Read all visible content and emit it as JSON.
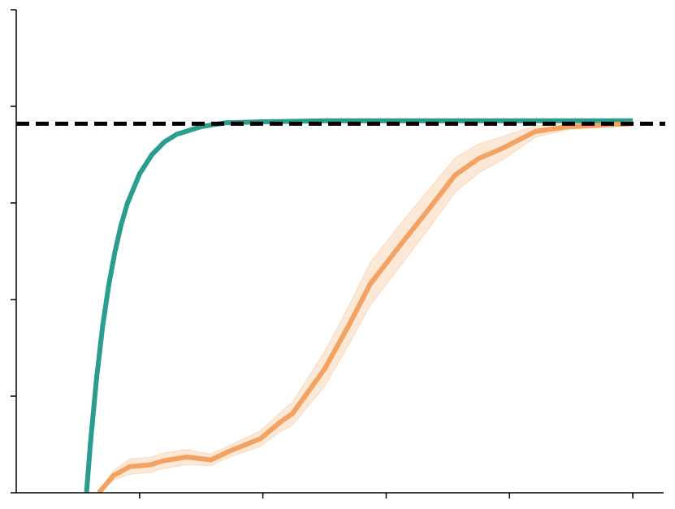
{
  "chart_data": {
    "type": "line",
    "xlim": [
      0,
      5.25
    ],
    "xticks": [
      1,
      2,
      3,
      4,
      5
    ],
    "ylim": [
      0,
      5
    ],
    "yticks": [
      0,
      1,
      2,
      3,
      4,
      5
    ],
    "hline": {
      "value": 3.82,
      "color": "#000000",
      "dashed": true
    },
    "series": [
      {
        "color": "#2a9d8f",
        "x": [
          0.57,
          0.6,
          0.65,
          0.7,
          0.75,
          0.8,
          0.85,
          0.9,
          1.0,
          1.1,
          1.2,
          1.3,
          1.5,
          1.7,
          2.0,
          2.5,
          3,
          4,
          5
        ],
        "values": [
          0,
          0.49,
          1.17,
          1.72,
          2.15,
          2.49,
          2.77,
          2.99,
          3.3,
          3.5,
          3.63,
          3.71,
          3.79,
          3.83,
          3.84,
          3.85,
          3.85,
          3.85,
          3.85
        ]
      },
      {
        "color": "#f4a261",
        "x": [
          0.67,
          0.79,
          0.92,
          1.09,
          1.19,
          1.38,
          1.58,
          1.71,
          1.98,
          2.14,
          2.24,
          2.5,
          2.7,
          2.87,
          3.1,
          3.36,
          3.56,
          3.75,
          3.95,
          4.21,
          4.48,
          5.0
        ],
        "values": [
          0,
          0.18,
          0.27,
          0.29,
          0.33,
          0.37,
          0.34,
          0.42,
          0.56,
          0.73,
          0.82,
          1.28,
          1.74,
          2.16,
          2.54,
          2.96,
          3.29,
          3.46,
          3.57,
          3.74,
          3.79,
          3.82
        ],
        "error": [
          0,
          0.05,
          0.08,
          0.08,
          0.08,
          0.08,
          0.06,
          0.06,
          0.08,
          0.1,
          0.12,
          0.18,
          0.2,
          0.22,
          0.22,
          0.2,
          0.18,
          0.15,
          0.12,
          0.06,
          0.03,
          0.02
        ]
      }
    ]
  }
}
